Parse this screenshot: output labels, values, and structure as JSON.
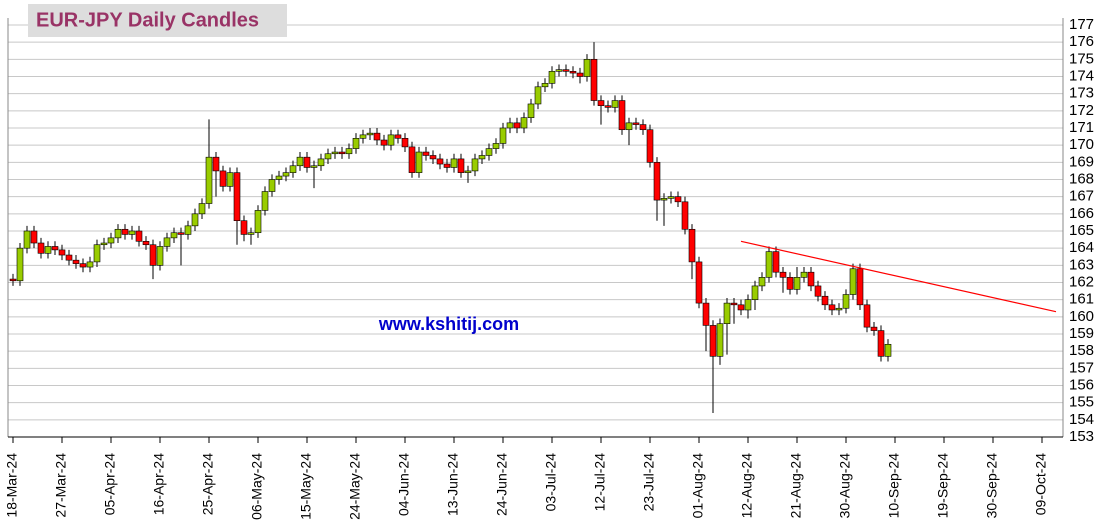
{
  "chart_data": {
    "type": "candlestick",
    "title": "EUR-JPY Daily  Candles",
    "watermark": "www.kshitij.com",
    "categories": [
      "18-Mar-24",
      null,
      null,
      null,
      null,
      null,
      null,
      "27-Mar-24",
      null,
      null,
      null,
      null,
      null,
      null,
      "05-Apr-24",
      null,
      null,
      null,
      null,
      null,
      null,
      "16-Apr-24",
      null,
      null,
      null,
      null,
      null,
      null,
      "25-Apr-24",
      null,
      null,
      null,
      null,
      null,
      null,
      "06-May-24",
      null,
      null,
      null,
      null,
      null,
      null,
      "15-May-24",
      null,
      null,
      null,
      null,
      null,
      null,
      "24-May-24",
      null,
      null,
      null,
      null,
      null,
      null,
      "04-Jun-24",
      null,
      null,
      null,
      null,
      null,
      null,
      "13-Jun-24",
      null,
      null,
      null,
      null,
      null,
      null,
      "24-Jun-24",
      null,
      null,
      null,
      null,
      null,
      null,
      "03-Jul-24",
      null,
      null,
      null,
      null,
      null,
      null,
      "12-Jul-24",
      null,
      null,
      null,
      null,
      null,
      null,
      "23-Jul-24",
      null,
      null,
      null,
      null,
      null,
      null,
      "01-Aug-24",
      null,
      null,
      null,
      null,
      null,
      null,
      "12-Aug-24",
      null,
      null,
      null,
      null,
      null,
      null,
      "21-Aug-24",
      null,
      null,
      null,
      null,
      null,
      null,
      "30-Aug-24",
      null,
      null,
      null,
      null,
      null,
      null,
      "10-Sep-24",
      null,
      null,
      null,
      null,
      null,
      null,
      "19-Sep-24",
      null,
      null,
      null,
      null,
      null,
      null,
      "30-Sep-24",
      null,
      null,
      null,
      null,
      null,
      null,
      "09-Oct-24",
      null,
      null,
      null
    ],
    "open": [
      162.2,
      162.1,
      164.0,
      165.0,
      164.3,
      163.7,
      164.1,
      163.9,
      163.6,
      163.3,
      163.1,
      162.9,
      163.2,
      164.2,
      164.3,
      164.6,
      165.1,
      164.8,
      165.0,
      164.4,
      164.2,
      163.0,
      164.1,
      164.6,
      164.9,
      164.8,
      165.3,
      166.0,
      166.6,
      169.3,
      168.5,
      167.6,
      168.4,
      165.6,
      164.8,
      164.9,
      166.2,
      167.3,
      168.0,
      168.2,
      168.4,
      168.8,
      169.3,
      168.7,
      168.8,
      169.2,
      169.5,
      169.6,
      169.5,
      169.8,
      170.4,
      170.6,
      170.7,
      170.3,
      170.0,
      170.6,
      170.4,
      169.9,
      168.4,
      169.6,
      169.4,
      169.2,
      168.9,
      168.7,
      169.2,
      168.4,
      168.5,
      169.2,
      169.4,
      169.8,
      170.1,
      171.0,
      171.3,
      171.0,
      171.6,
      172.4,
      173.4,
      173.6,
      174.3,
      174.4,
      174.3,
      174.2,
      174.0,
      175.0,
      172.6,
      172.3,
      172.2,
      172.6,
      170.9,
      171.3,
      171.2,
      170.9,
      169.0,
      166.8,
      166.9,
      167.0,
      166.7,
      165.1,
      163.2,
      160.8,
      159.5,
      157.7,
      159.6,
      160.8,
      160.7,
      160.4,
      161.0,
      161.8,
      162.3,
      163.8,
      162.6,
      162.3,
      161.6,
      162.3,
      162.6,
      161.8,
      161.2,
      160.7,
      160.4,
      160.5,
      161.3,
      162.8,
      160.7,
      159.4,
      159.2,
      157.7,
      null,
      null,
      null,
      null,
      null,
      null,
      null,
      null,
      null,
      null,
      null,
      null,
      null,
      null,
      null,
      null,
      null,
      null,
      null,
      null,
      null,
      null,
      null,
      null,
      null
    ],
    "high": [
      162.5,
      164.3,
      165.3,
      165.3,
      164.6,
      164.4,
      164.4,
      164.2,
      163.9,
      163.6,
      163.4,
      163.5,
      164.5,
      164.6,
      164.9,
      165.4,
      165.4,
      165.3,
      165.3,
      164.7,
      164.5,
      164.4,
      164.9,
      165.2,
      165.2,
      165.6,
      166.3,
      166.9,
      171.5,
      169.6,
      168.8,
      168.7,
      168.7,
      165.9,
      165.2,
      166.5,
      167.6,
      168.3,
      168.5,
      168.7,
      169.1,
      169.6,
      169.6,
      169.1,
      169.5,
      169.8,
      169.9,
      169.9,
      170.1,
      170.7,
      170.9,
      171.0,
      171.0,
      170.6,
      170.9,
      170.9,
      170.7,
      170.2,
      169.9,
      169.9,
      169.7,
      169.5,
      169.2,
      169.5,
      169.5,
      168.8,
      169.5,
      169.7,
      170.1,
      170.4,
      171.3,
      171.6,
      171.6,
      171.9,
      172.7,
      173.7,
      173.9,
      174.6,
      174.7,
      174.7,
      174.6,
      174.5,
      175.3,
      176.0,
      172.9,
      172.6,
      172.9,
      172.9,
      171.6,
      171.6,
      171.5,
      171.2,
      169.3,
      167.2,
      167.3,
      167.3,
      167.0,
      165.4,
      163.5,
      161.1,
      159.8,
      159.9,
      161.1,
      161.1,
      161.0,
      161.3,
      162.1,
      162.6,
      164.1,
      164.1,
      162.9,
      162.6,
      162.9,
      162.9,
      162.9,
      162.1,
      161.5,
      161.0,
      160.8,
      161.6,
      163.1,
      163.1,
      161.0,
      159.7,
      159.5,
      158.7,
      null,
      null,
      null,
      null,
      null,
      null,
      null,
      null,
      null,
      null,
      null,
      null,
      null,
      null,
      null,
      null,
      null,
      null,
      null,
      null,
      null,
      null,
      null,
      null,
      null
    ],
    "low": [
      161.8,
      161.8,
      163.7,
      164.0,
      163.4,
      163.4,
      163.6,
      163.3,
      163.0,
      162.8,
      162.6,
      162.6,
      162.9,
      163.9,
      164.0,
      164.3,
      164.5,
      164.5,
      164.1,
      163.9,
      162.2,
      162.7,
      163.8,
      164.3,
      163.0,
      164.5,
      165.0,
      165.7,
      166.3,
      167.0,
      167.3,
      167.3,
      164.2,
      164.4,
      164.2,
      164.6,
      165.9,
      167.0,
      167.7,
      167.9,
      168.1,
      168.5,
      168.4,
      167.5,
      168.5,
      168.9,
      169.2,
      169.2,
      169.2,
      169.5,
      170.1,
      170.3,
      170.0,
      169.7,
      169.7,
      170.1,
      169.6,
      168.1,
      168.1,
      169.1,
      168.9,
      168.6,
      168.4,
      168.4,
      168.1,
      167.8,
      168.2,
      168.9,
      169.1,
      169.5,
      169.8,
      170.7,
      170.7,
      170.7,
      171.3,
      172.1,
      173.1,
      173.3,
      174.0,
      174.0,
      173.9,
      173.6,
      173.7,
      172.3,
      171.2,
      171.9,
      171.9,
      170.6,
      170.0,
      170.9,
      170.6,
      168.7,
      165.6,
      165.3,
      166.6,
      166.4,
      164.8,
      162.2,
      160.5,
      158.0,
      154.4,
      157.2,
      157.8,
      159.6,
      160.1,
      159.9,
      160.4,
      161.5,
      162.0,
      162.3,
      161.4,
      161.3,
      161.3,
      162.0,
      161.5,
      160.9,
      160.4,
      160.1,
      160.1,
      160.2,
      161.0,
      160.4,
      159.1,
      158.9,
      157.4,
      157.4,
      null,
      null,
      null,
      null,
      null,
      null,
      null,
      null,
      null,
      null,
      null,
      null,
      null,
      null,
      null,
      null,
      null,
      null,
      null,
      null,
      null,
      null,
      null,
      null,
      null
    ],
    "close": [
      162.1,
      164.0,
      165.0,
      164.3,
      163.7,
      164.1,
      163.9,
      163.6,
      163.3,
      163.1,
      162.9,
      163.2,
      164.2,
      164.3,
      164.6,
      165.1,
      164.8,
      165.0,
      164.4,
      164.2,
      163.0,
      164.1,
      164.6,
      164.9,
      164.8,
      165.3,
      166.0,
      166.6,
      169.3,
      168.5,
      167.6,
      168.4,
      165.6,
      164.8,
      164.9,
      166.2,
      167.3,
      168.0,
      168.2,
      168.4,
      168.8,
      169.3,
      168.7,
      168.8,
      169.2,
      169.5,
      169.6,
      169.5,
      169.8,
      170.4,
      170.6,
      170.7,
      170.3,
      170.0,
      170.6,
      170.4,
      169.9,
      168.4,
      169.6,
      169.4,
      169.2,
      168.9,
      168.7,
      169.2,
      168.4,
      168.5,
      169.2,
      169.4,
      169.8,
      170.1,
      171.0,
      171.3,
      171.0,
      171.6,
      172.4,
      173.4,
      173.6,
      174.3,
      174.4,
      174.3,
      174.2,
      174.0,
      175.0,
      172.6,
      172.3,
      172.2,
      172.6,
      170.9,
      171.3,
      171.2,
      170.9,
      169.0,
      166.8,
      166.9,
      167.0,
      166.7,
      165.1,
      163.2,
      160.8,
      159.5,
      157.7,
      159.6,
      160.8,
      160.7,
      160.4,
      161.0,
      161.8,
      162.3,
      163.8,
      162.6,
      162.3,
      161.6,
      162.3,
      162.6,
      161.8,
      161.2,
      160.7,
      160.4,
      160.5,
      161.3,
      162.8,
      160.7,
      159.4,
      159.2,
      157.7,
      158.4,
      null,
      null,
      null,
      null,
      null,
      null,
      null,
      null,
      null,
      null,
      null,
      null,
      null,
      null,
      null,
      null,
      null,
      null,
      null,
      null,
      null,
      null,
      null,
      null,
      null
    ],
    "up_color": "#99cc00",
    "down_color": "#ff0000",
    "trendline": {
      "start": [
        104,
        164.4
      ],
      "end": [
        149,
        160.3
      ],
      "color": "#ff0000"
    },
    "ylim": [
      153,
      177
    ],
    "yticks": [
      153,
      154,
      155,
      156,
      157,
      158,
      159,
      160,
      161,
      162,
      163,
      164,
      165,
      166,
      167,
      168,
      169,
      170,
      171,
      172,
      173,
      174,
      175,
      176,
      177
    ],
    "grid": true
  }
}
